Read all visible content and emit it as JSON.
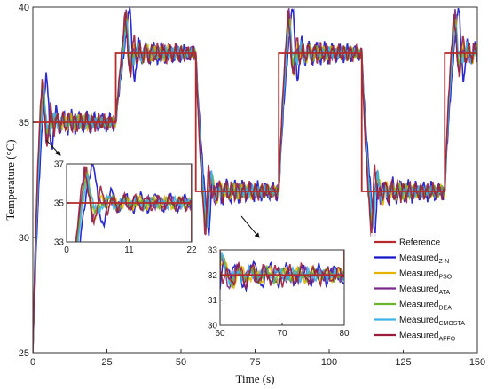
{
  "chart_data": {
    "type": "line",
    "xlabel": "Time (s)",
    "ylabel": "Temperature (°C)",
    "xlim": [
      0,
      150
    ],
    "ylim": [
      25,
      40
    ],
    "xticks": [
      "0",
      "25",
      "50",
      "75",
      "100",
      "125",
      "150"
    ],
    "yticks": [
      "25",
      "30",
      "35",
      "40"
    ],
    "grid": false,
    "legend_position": "bottom-right",
    "reference": {
      "name": "Reference",
      "color": "#b52a2a",
      "steps": [
        [
          0,
          35
        ],
        [
          28,
          38
        ],
        [
          55,
          32
        ],
        [
          83,
          38
        ],
        [
          111,
          32
        ],
        [
          139,
          38
        ],
        [
          150,
          38
        ]
      ]
    },
    "series": [
      {
        "name": "Measured",
        "sub": "Z-N",
        "color": "#1414c8",
        "rise": 4.5,
        "peak_over": 2.0,
        "amp": 0.55,
        "period": 2.6,
        "decay": 0.035
      },
      {
        "name": "Measured",
        "sub": "PSO",
        "color": "#e6b400",
        "rise": 3.5,
        "peak_over": 1.6,
        "amp": 0.35,
        "period": 2.3,
        "decay": 0.045
      },
      {
        "name": "Measured",
        "sub": "ATA",
        "color": "#7a2a8e",
        "rise": 3.4,
        "peak_over": 1.7,
        "amp": 0.32,
        "period": 2.2,
        "decay": 0.045
      },
      {
        "name": "Measured",
        "sub": "DEA",
        "color": "#6bb52a",
        "rise": 3.6,
        "peak_over": 1.5,
        "amp": 0.3,
        "period": 2.4,
        "decay": 0.05
      },
      {
        "name": "Measured",
        "sub": "CMOSTA",
        "color": "#3fb3e8",
        "rise": 3.8,
        "peak_over": 1.4,
        "amp": 0.28,
        "period": 2.3,
        "decay": 0.05
      },
      {
        "name": "Measured",
        "sub": "AFFO",
        "color": "#9a1e3a",
        "rise": 3.2,
        "peak_over": 1.9,
        "amp": 0.45,
        "period": 2.0,
        "decay": 0.03
      }
    ],
    "insets": [
      {
        "xlim": [
          0,
          22
        ],
        "ylim": [
          33,
          37
        ],
        "xticks": [
          "0",
          "11",
          "22"
        ],
        "yticks": [
          "33",
          "35",
          "37"
        ]
      },
      {
        "xlim": [
          60,
          80
        ],
        "ylim": [
          30,
          33
        ],
        "xticks": [
          "60",
          "70",
          "80"
        ],
        "yticks": [
          "30",
          "31",
          "32",
          "33"
        ]
      }
    ]
  }
}
